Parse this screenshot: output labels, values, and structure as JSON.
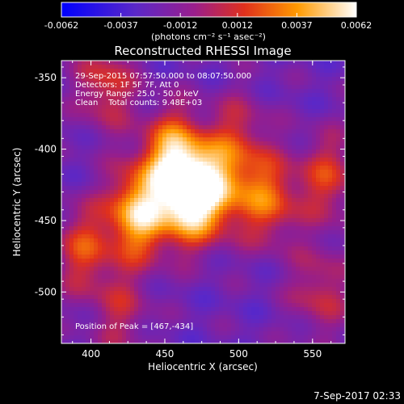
{
  "window": {
    "footer_timestamp": "7-Sep-2017 02:33"
  },
  "colorbar": {
    "ticks": [
      "-0.0062",
      "-0.0037",
      "-0.0012",
      "0.0012",
      "0.0037",
      "0.0062"
    ],
    "tick_values": [
      -0.0062,
      -0.0037,
      -0.0012,
      0.0012,
      0.0037,
      0.0062
    ],
    "unit_label": "(photons cm⁻² s⁻¹ asec⁻²)",
    "range": [
      -0.0062,
      0.0062
    ]
  },
  "chart_data": {
    "type": "heatmap",
    "title": "Reconstructed RHESSI Image",
    "xlabel": "Heliocentric X (arcsec)",
    "ylabel": "Heliocentric Y (arcsec)",
    "xlim": [
      380,
      572
    ],
    "ylim": [
      -536,
      -338
    ],
    "xticks": [
      400,
      450,
      500,
      550
    ],
    "yticks": [
      -350,
      -400,
      -450,
      -500
    ],
    "annotations": [
      "29-Sep-2015 07:57:50.000 to 08:07:50.000",
      "Detectors: 1F 5F 7F, Att 0",
      "Energy Range: 25.0 - 50.0 keV",
      "Clean    Total counts: 9.48E+03"
    ],
    "peak_label": "Position of Peak = [467,-434]",
    "peak_position": [
      467,
      -434
    ],
    "peak_value": 0.0062,
    "sources": [
      {
        "x": 467,
        "y": -434,
        "amp": 1.0
      },
      {
        "x": 432,
        "y": -445,
        "amp": 0.85
      },
      {
        "x": 455,
        "y": -405,
        "amp": 0.72
      },
      {
        "x": 488,
        "y": -425,
        "amp": 0.55
      },
      {
        "x": 520,
        "y": -435,
        "amp": 0.55
      },
      {
        "x": 395,
        "y": -470,
        "amp": 0.45
      },
      {
        "x": 410,
        "y": -355,
        "amp": 0.42
      },
      {
        "x": 560,
        "y": -420,
        "amp": 0.42
      },
      {
        "x": 555,
        "y": -500,
        "amp": 0.35
      },
      {
        "x": 500,
        "y": -390,
        "amp": 0.3
      },
      {
        "x": 420,
        "y": -515,
        "amp": 0.3
      }
    ]
  }
}
